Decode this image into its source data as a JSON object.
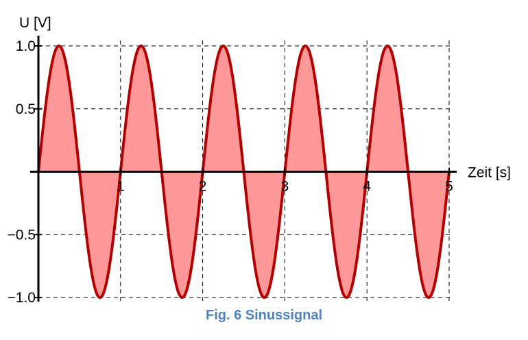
{
  "caption": "Fig. 6 Sinussignal",
  "colors": {
    "curve": "#b30000",
    "fill": "#ff9999",
    "grid": "#000000",
    "caption": "#4f81bd"
  },
  "chart_data": {
    "type": "area",
    "title": "",
    "xlabel": "Zeit [s]",
    "ylabel": "U [V]",
    "xlim": [
      0,
      5
    ],
    "ylim": [
      -1,
      1
    ],
    "x_ticks": [
      1,
      2,
      3,
      4,
      5
    ],
    "x_tick_labels": [
      "1",
      "2",
      "3",
      "4",
      "5"
    ],
    "y_ticks": [
      1.0,
      0.5,
      -0.5,
      -1.0
    ],
    "y_tick_labels": [
      "1.0",
      "0.5",
      "−0.5",
      "−1.0"
    ],
    "grid": true,
    "grid_style": "dashed",
    "series": [
      {
        "function": "sin",
        "amplitude": 1,
        "frequency_hz": 1,
        "x_start": 0,
        "x_end": 5,
        "filled_to_zero": true
      }
    ]
  }
}
